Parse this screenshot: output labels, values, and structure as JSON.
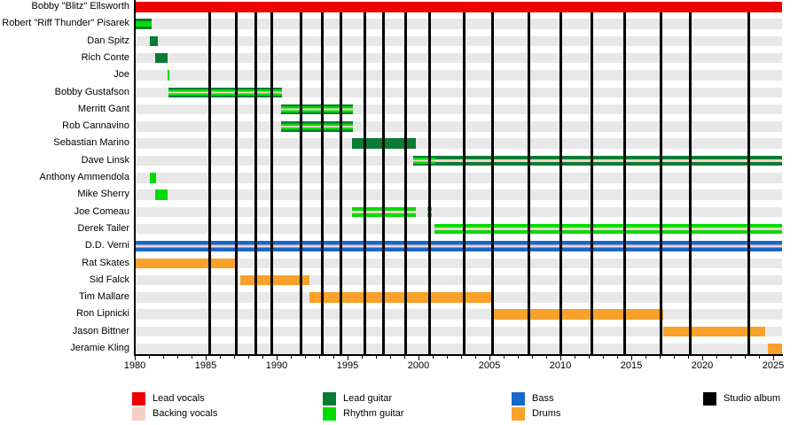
{
  "chart_data": {
    "type": "timeline",
    "x_range": [
      1980,
      2025.6
    ],
    "tick_labels": [
      "1980",
      "1985",
      "1990",
      "1995",
      "2000",
      "2005",
      "2010",
      "2015",
      "2020",
      "2025"
    ],
    "colors": {
      "lead_vocals": "#ee0000",
      "backing_vocals": "#f5d0c8",
      "lead_guitar": "#0a7b35",
      "rhythm_guitar": "#00dc00",
      "bass": "#1669c9",
      "drums": "#f9a12a",
      "studio_album": "#000000",
      "row_background": "#e8e8e8"
    },
    "members": [
      {
        "name": "Bobby \"Blitz\" Ellsworth",
        "segments": [
          {
            "start": 1980,
            "end": 2025.6,
            "roles": [
              "lead_vocals"
            ]
          }
        ]
      },
      {
        "name": "Robert \"Riff Thunder\" Pisarek",
        "segments": [
          {
            "start": 1980,
            "end": 1981.2,
            "roles": [
              "lead_guitar",
              "rhythm_guitar"
            ]
          }
        ]
      },
      {
        "name": "Dan Spitz",
        "segments": [
          {
            "start": 1981.05,
            "end": 1981.6,
            "roles": [
              "lead_guitar"
            ]
          }
        ]
      },
      {
        "name": "Rich Conte",
        "segments": [
          {
            "start": 1981.45,
            "end": 1982.3,
            "roles": [
              "lead_guitar"
            ]
          }
        ]
      },
      {
        "name": "Joe",
        "segments": [
          {
            "start": 1982.3,
            "end": 1982.45,
            "roles": [
              "rhythm_guitar"
            ]
          }
        ]
      },
      {
        "name": "Bobby Gustafson",
        "segments": [
          {
            "start": 1982.4,
            "end": 1990.35,
            "roles": [
              "lead_guitar",
              "rhythm_guitar",
              "backing_vocals"
            ]
          }
        ]
      },
      {
        "name": "Merritt Gant",
        "segments": [
          {
            "start": 1990.3,
            "end": 1995.35,
            "roles": [
              "lead_guitar",
              "rhythm_guitar",
              "backing_vocals"
            ]
          }
        ]
      },
      {
        "name": "Rob Cannavino",
        "segments": [
          {
            "start": 1990.3,
            "end": 1995.35,
            "roles": [
              "lead_guitar",
              "rhythm_guitar",
              "backing_vocals"
            ]
          }
        ]
      },
      {
        "name": "Sebastian Marino",
        "segments": [
          {
            "start": 1995.3,
            "end": 1999.8,
            "roles": [
              "lead_guitar"
            ]
          }
        ]
      },
      {
        "name": "Dave Linsk",
        "segments": [
          {
            "start": 1999.65,
            "end": 2001.2,
            "roles": [
              "lead_guitar",
              "rhythm_guitar",
              "backing_vocals"
            ]
          },
          {
            "start": 2001.2,
            "end": 2025.6,
            "roles": [
              "lead_guitar",
              "backing_vocals"
            ]
          }
        ]
      },
      {
        "name": "Anthony Ammendola",
        "segments": [
          {
            "start": 1981.05,
            "end": 1981.5,
            "roles": [
              "rhythm_guitar"
            ]
          }
        ]
      },
      {
        "name": "Mike Sherry",
        "segments": [
          {
            "start": 1981.45,
            "end": 1982.3,
            "roles": [
              "rhythm_guitar"
            ]
          }
        ]
      },
      {
        "name": "Joe Comeau",
        "segments": [
          {
            "start": 1995.3,
            "end": 1999.8,
            "roles": [
              "rhythm_guitar",
              "backing_vocals"
            ]
          },
          {
            "start": 2000.6,
            "end": 2000.95,
            "roles": [
              "rhythm_guitar",
              "backing_vocals"
            ]
          }
        ]
      },
      {
        "name": "Derek Tailer",
        "segments": [
          {
            "start": 2001.15,
            "end": 2025.6,
            "roles": [
              "rhythm_guitar",
              "backing_vocals"
            ]
          }
        ]
      },
      {
        "name": "D.D. Verni",
        "segments": [
          {
            "start": 1980,
            "end": 2025.6,
            "roles": [
              "bass",
              "backing_vocals"
            ]
          }
        ]
      },
      {
        "name": "Rat Skates",
        "segments": [
          {
            "start": 1980,
            "end": 1987.2,
            "roles": [
              "drums"
            ]
          }
        ]
      },
      {
        "name": "Sid Falck",
        "segments": [
          {
            "start": 1987.45,
            "end": 1992.3,
            "roles": [
              "drums"
            ]
          }
        ]
      },
      {
        "name": "Tim Mallare",
        "segments": [
          {
            "start": 1992.3,
            "end": 2005.3,
            "roles": [
              "drums"
            ]
          }
        ]
      },
      {
        "name": "Ron Lipnicki",
        "segments": [
          {
            "start": 2005.3,
            "end": 2017.25,
            "roles": [
              "drums"
            ]
          }
        ]
      },
      {
        "name": "Jason Bittner",
        "segments": [
          {
            "start": 2017.25,
            "end": 2024.45,
            "roles": [
              "drums"
            ]
          }
        ]
      },
      {
        "name": "Jeramie Kling",
        "segments": [
          {
            "start": 2024.6,
            "end": 2025.6,
            "roles": [
              "drums"
            ]
          }
        ]
      }
    ],
    "albums": [
      1985.3,
      1987.15,
      1988.5,
      1989.65,
      1991.7,
      1993.2,
      1994.5,
      1996.2,
      1997.55,
      1999.1,
      2000.8,
      2003.2,
      2005.2,
      2007.8,
      2010.05,
      2012.2,
      2014.5,
      2017.1,
      2019.15,
      2023.3
    ],
    "legend": [
      {
        "label": "Lead vocals",
        "role": "lead_vocals",
        "col": 0,
        "row": 0
      },
      {
        "label": "Backing vocals",
        "role": "backing_vocals",
        "col": 0,
        "row": 1
      },
      {
        "label": "Lead guitar",
        "role": "lead_guitar",
        "col": 1,
        "row": 0
      },
      {
        "label": "Rhythm guitar",
        "role": "rhythm_guitar",
        "col": 1,
        "row": 1
      },
      {
        "label": "Bass",
        "role": "bass",
        "col": 2,
        "row": 0
      },
      {
        "label": "Drums",
        "role": "drums",
        "col": 2,
        "row": 1
      },
      {
        "label": "Studio album",
        "role": "studio_album",
        "col": 3,
        "row": 0
      }
    ]
  }
}
